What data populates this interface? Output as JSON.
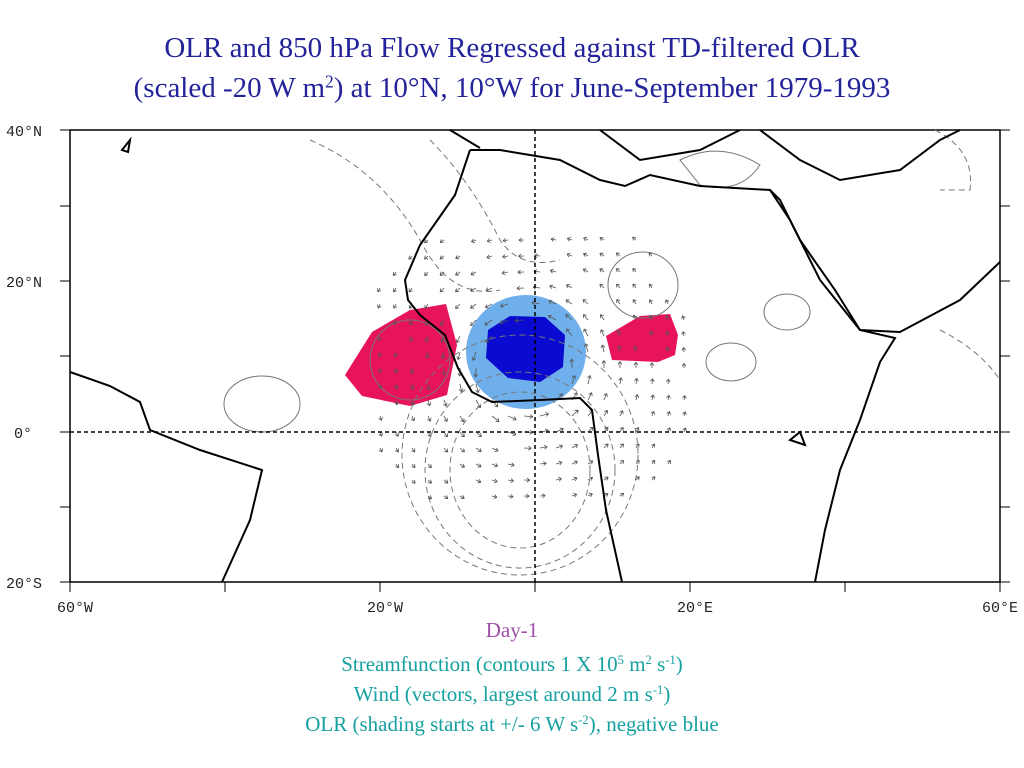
{
  "title": {
    "line1": "OLR and 850 hPa Flow Regressed against TD-filtered OLR",
    "line2": [
      "(scaled -20 W m",
      "2",
      ") at 10°N, 10°W for June-September 1979-1993"
    ]
  },
  "axes": {
    "lat_labels": [
      "40°N",
      "20°N",
      "0°",
      "20°S"
    ],
    "lon_labels": [
      "60°W",
      "20°W",
      "20°E",
      "60°E"
    ]
  },
  "caption": {
    "day": "Day-1",
    "streamfunction": [
      "Streamfunction (contours 1 X 10",
      "5",
      " m",
      "2",
      " s",
      "-1",
      ")"
    ],
    "wind": [
      "Wind (vectors, largest around 2 m s",
      "-1",
      ")"
    ],
    "olr": [
      "OLR (shading starts at +/- 6 W s",
      "-2",
      "), negative blue"
    ]
  }
}
